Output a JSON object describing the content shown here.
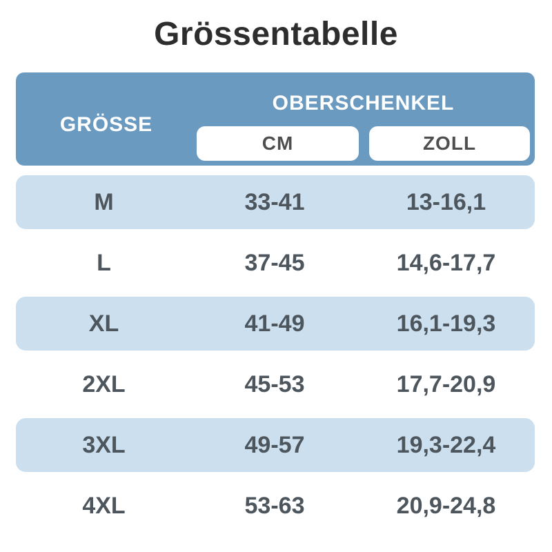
{
  "title": "Grössentabelle",
  "table": {
    "header": {
      "size_label": "GRÖSSE",
      "group_label": "OBERSCHENKEL",
      "unit_cm": "CM",
      "unit_zoll": "ZOLL"
    },
    "rows": [
      {
        "size": "M",
        "cm": "33-41",
        "zoll": "13-16,1"
      },
      {
        "size": "L",
        "cm": "37-45",
        "zoll": "14,6-17,7"
      },
      {
        "size": "XL",
        "cm": "41-49",
        "zoll": "16,1-19,3"
      },
      {
        "size": "2XL",
        "cm": "45-53",
        "zoll": "17,7-20,9"
      },
      {
        "size": "3XL",
        "cm": "49-57",
        "zoll": "19,3-22,4"
      },
      {
        "size": "4XL",
        "cm": "53-63",
        "zoll": "20,9-24,8"
      }
    ]
  },
  "colors": {
    "header_bg": "#6b9ac1",
    "row_alt_bg": "#cbdfee",
    "title_text": "#2d2d2d",
    "header_text": "#ffffff",
    "unit_text": "#4e4e4e",
    "cell_text": "#4d555d"
  },
  "chart_data": {
    "type": "table",
    "title": "Grössentabelle",
    "columns": [
      "GRÖSSE",
      "OBERSCHENKEL CM",
      "OBERSCHENKEL ZOLL"
    ],
    "rows": [
      [
        "M",
        "33-41",
        "13-16,1"
      ],
      [
        "L",
        "37-45",
        "14,6-17,7"
      ],
      [
        "XL",
        "41-49",
        "16,1-19,3"
      ],
      [
        "2XL",
        "45-53",
        "17,7-20,9"
      ],
      [
        "3XL",
        "49-57",
        "19,3-22,4"
      ],
      [
        "4XL",
        "53-63",
        "20,9-24,8"
      ]
    ]
  }
}
